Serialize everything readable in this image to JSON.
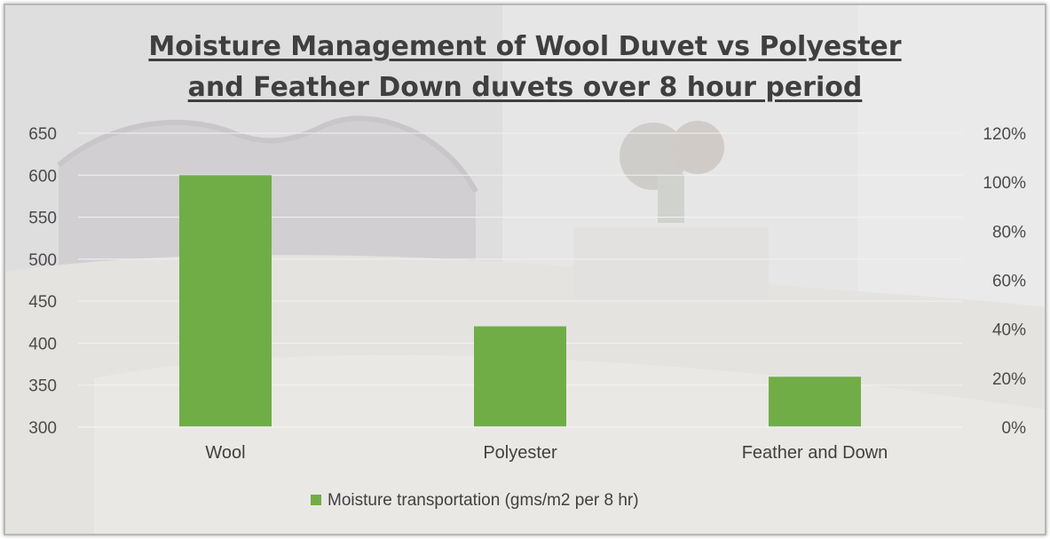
{
  "chart_data": {
    "type": "bar",
    "title_line1": "Moisture Management of Wool Duvet vs Polyester",
    "title_line2": "and Feather Down duvets over 8 hour period",
    "categories": [
      "Wool",
      "Polyester",
      "Feather and Down"
    ],
    "series": [
      {
        "name": "Moisture transportation (gms/m2 per 8 hr)",
        "values": [
          600,
          420,
          360
        ]
      }
    ],
    "ylim": [
      300,
      650
    ],
    "yticks": [
      "650",
      "600",
      "550",
      "500",
      "450",
      "400",
      "350",
      "300"
    ],
    "y2lim": [
      0,
      120
    ],
    "y2ticks": [
      "120%",
      "100%",
      "80%",
      "60%",
      "40%",
      "20%",
      "0%"
    ],
    "bar_color": "#70ad47",
    "grid": true,
    "legend": "bottom"
  }
}
